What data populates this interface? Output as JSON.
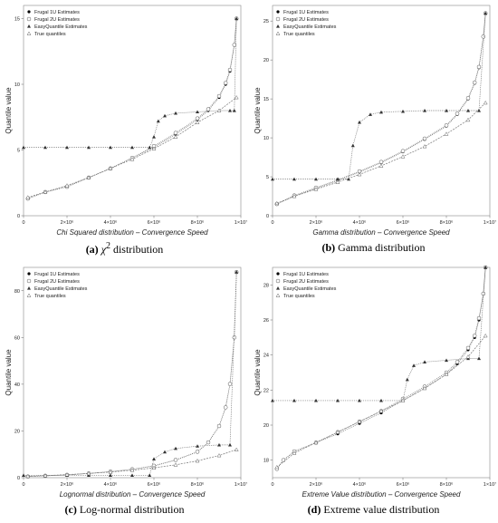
{
  "panels": [
    {
      "tag": "(a)",
      "caption_pre": "",
      "caption_math": "χ",
      "caption_sup": "2",
      "caption_post": " distribution"
    },
    {
      "tag": "(b)",
      "caption_pre": "Gamma distribution",
      "caption_math": "",
      "caption_sup": "",
      "caption_post": ""
    },
    {
      "tag": "(c)",
      "caption_pre": "Log-normal distribution",
      "caption_math": "",
      "caption_sup": "",
      "caption_post": ""
    },
    {
      "tag": "(d)",
      "caption_pre": "Extreme value distribution",
      "caption_math": "",
      "caption_sup": "",
      "caption_post": ""
    }
  ],
  "chart_data": [
    {
      "type": "scatter",
      "title": "",
      "xlabel": "Chi Squared distribution –  Convergence Speed",
      "ylabel": "Quantile value",
      "xlim": [
        0,
        10000000
      ],
      "ylim": [
        0,
        16
      ],
      "xticks": [
        0,
        2000000,
        4000000,
        6000000,
        8000000,
        10000000
      ],
      "xtick_labels": [
        "0",
        "2×10⁶",
        "4×10⁶",
        "6×10⁶",
        "8×10⁶",
        "1×10⁷"
      ],
      "yticks": [
        0,
        5,
        10,
        15
      ],
      "legend_position": "top-left",
      "series": [
        {
          "name": "Frugal 1U Estimates",
          "marker": "filled-circle",
          "x": [
            200000,
            1000000,
            2000000,
            3000000,
            4000000,
            5000000,
            6000000,
            7000000,
            8000000,
            8500000,
            9000000,
            9300000,
            9500000,
            9700000,
            9800000
          ],
          "y": [
            1.3,
            1.8,
            2.2,
            2.9,
            3.6,
            4.4,
            5.2,
            6.2,
            7.3,
            8.0,
            9.0,
            10.0,
            11.0,
            13.0,
            15.0
          ]
        },
        {
          "name": "Frugal 2U Estimates",
          "marker": "open-circle",
          "x": [
            200000,
            1000000,
            2000000,
            3000000,
            4000000,
            5000000,
            6000000,
            7000000,
            8000000,
            8500000,
            9000000,
            9300000,
            9500000,
            9700000,
            9800000
          ],
          "y": [
            1.3,
            1.8,
            2.2,
            2.9,
            3.6,
            4.4,
            5.3,
            6.3,
            7.4,
            8.1,
            9.1,
            10.1,
            11.1,
            13.0,
            15.0
          ]
        },
        {
          "name": "EasyQuantile Estimates",
          "marker": "filled-triangle",
          "x": [
            0,
            1000000,
            2000000,
            3000000,
            4000000,
            5000000,
            5800000,
            6000000,
            6200000,
            6500000,
            7000000,
            8000000,
            9000000,
            9500000,
            9700000,
            9800000
          ],
          "y": [
            5.2,
            5.2,
            5.2,
            5.2,
            5.2,
            5.2,
            5.2,
            6.0,
            7.2,
            7.6,
            7.8,
            7.9,
            8.0,
            8.0,
            8.0,
            15.0
          ]
        },
        {
          "name": "True quantiles",
          "marker": "open-triangle",
          "x": [
            200000,
            1000000,
            2000000,
            3000000,
            4000000,
            5000000,
            6000000,
            7000000,
            8000000,
            9000000,
            9800000
          ],
          "y": [
            1.4,
            1.8,
            2.3,
            2.9,
            3.6,
            4.3,
            5.1,
            6.0,
            7.1,
            8.0,
            9.0
          ]
        }
      ]
    },
    {
      "type": "scatter",
      "title": "",
      "xlabel": "Gamma distribution –  Convergence Speed",
      "ylabel": "Quantile value",
      "xlim": [
        0,
        10000000
      ],
      "ylim": [
        0,
        27
      ],
      "xticks": [
        0,
        2000000,
        4000000,
        6000000,
        8000000,
        10000000
      ],
      "xtick_labels": [
        "0",
        "2×10⁶",
        "4×10⁶",
        "6×10⁶",
        "8×10⁶",
        "1×10⁷"
      ],
      "yticks": [
        0,
        5,
        10,
        15,
        20,
        25
      ],
      "legend_position": "top-left",
      "series": [
        {
          "name": "Frugal 1U Estimates",
          "marker": "filled-circle",
          "x": [
            200000,
            1000000,
            2000000,
            3000000,
            4000000,
            5000000,
            6000000,
            7000000,
            8000000,
            8500000,
            9000000,
            9300000,
            9500000,
            9700000,
            9800000
          ],
          "y": [
            1.5,
            2.5,
            3.5,
            4.5,
            5.6,
            6.8,
            8.2,
            9.8,
            11.5,
            13.0,
            15.0,
            17.0,
            19.0,
            23.0,
            26.0
          ]
        },
        {
          "name": "Frugal 2U Estimates",
          "marker": "open-circle",
          "x": [
            200000,
            1000000,
            2000000,
            3000000,
            4000000,
            5000000,
            6000000,
            7000000,
            8000000,
            8500000,
            9000000,
            9300000,
            9500000,
            9700000,
            9800000
          ],
          "y": [
            1.5,
            2.6,
            3.6,
            4.6,
            5.7,
            6.9,
            8.3,
            9.9,
            11.6,
            13.1,
            15.1,
            17.1,
            19.1,
            23.0,
            26.0
          ]
        },
        {
          "name": "EasyQuantile Estimates",
          "marker": "filled-triangle",
          "x": [
            0,
            1000000,
            2000000,
            3000000,
            3500000,
            3700000,
            4000000,
            4500000,
            5000000,
            6000000,
            7000000,
            8000000,
            9000000,
            9500000,
            9800000
          ],
          "y": [
            4.7,
            4.7,
            4.7,
            4.7,
            4.7,
            9.0,
            12.0,
            13.0,
            13.3,
            13.4,
            13.5,
            13.5,
            13.5,
            13.5,
            26.0
          ]
        },
        {
          "name": "True quantiles",
          "marker": "open-triangle",
          "x": [
            200000,
            1000000,
            2000000,
            3000000,
            4000000,
            5000000,
            6000000,
            7000000,
            8000000,
            9000000,
            9800000
          ],
          "y": [
            1.6,
            2.5,
            3.4,
            4.3,
            5.3,
            6.4,
            7.6,
            8.9,
            10.5,
            12.3,
            14.5
          ]
        }
      ]
    },
    {
      "type": "scatter",
      "title": "",
      "xlabel": "Lognormal distribution –  Convergence Speed",
      "ylabel": "Quantile value",
      "xlim": [
        0,
        10000000
      ],
      "ylim": [
        0,
        90
      ],
      "xticks": [
        0,
        2000000,
        4000000,
        6000000,
        8000000,
        10000000
      ],
      "xtick_labels": [
        "0",
        "2×10⁶",
        "4×10⁶",
        "6×10⁶",
        "8×10⁶",
        "1×10⁷"
      ],
      "yticks": [
        0,
        20,
        40,
        60,
        80
      ],
      "legend_position": "top-left",
      "series": [
        {
          "name": "Frugal 1U Estimates",
          "marker": "filled-circle",
          "x": [
            200000,
            1000000,
            2000000,
            3000000,
            4000000,
            5000000,
            6000000,
            7000000,
            8000000,
            8500000,
            9000000,
            9300000,
            9500000,
            9700000,
            9800000
          ],
          "y": [
            0.5,
            0.8,
            1.2,
            1.8,
            2.6,
            3.6,
            5.0,
            7.5,
            11.0,
            15.0,
            22.0,
            30.0,
            40.0,
            60.0,
            88.0
          ]
        },
        {
          "name": "Frugal 2U Estimates",
          "marker": "open-circle",
          "x": [
            200000,
            1000000,
            2000000,
            3000000,
            4000000,
            5000000,
            6000000,
            7000000,
            8000000,
            8500000,
            9000000,
            9300000,
            9500000,
            9700000,
            9800000
          ],
          "y": [
            0.5,
            0.8,
            1.2,
            1.8,
            2.6,
            3.6,
            5.1,
            7.6,
            11.1,
            15.1,
            22.1,
            30.1,
            40.1,
            60.0,
            88.0
          ]
        },
        {
          "name": "EasyQuantile Estimates",
          "marker": "filled-triangle",
          "x": [
            0,
            1000000,
            2000000,
            3000000,
            4000000,
            5000000,
            5800000,
            6000000,
            6500000,
            7000000,
            8000000,
            9000000,
            9500000,
            9800000
          ],
          "y": [
            1.0,
            1.0,
            1.0,
            1.0,
            1.0,
            1.0,
            1.0,
            8.0,
            11.0,
            12.5,
            13.5,
            14.0,
            14.0,
            88.0
          ]
        },
        {
          "name": "True quantiles",
          "marker": "open-triangle",
          "x": [
            200000,
            1000000,
            2000000,
            3000000,
            4000000,
            5000000,
            6000000,
            7000000,
            8000000,
            9000000,
            9800000
          ],
          "y": [
            0.6,
            0.9,
            1.3,
            1.8,
            2.4,
            3.2,
            4.2,
            5.5,
            7.2,
            9.5,
            12.0
          ]
        }
      ]
    },
    {
      "type": "scatter",
      "title": "",
      "xlabel": "Extreme Value distribution –  Convergence Speed",
      "ylabel": "Quantile value",
      "xlim": [
        0,
        10000000
      ],
      "ylim": [
        17,
        29
      ],
      "xticks": [
        0,
        2000000,
        4000000,
        6000000,
        8000000,
        10000000
      ],
      "xtick_labels": [
        "0",
        "2×10⁶",
        "4×10⁶",
        "6×10⁶",
        "8×10⁶",
        "1×10⁷"
      ],
      "yticks": [
        18,
        20,
        22,
        24,
        26,
        28
      ],
      "legend_position": "top-left",
      "series": [
        {
          "name": "Frugal 1U Estimates",
          "marker": "filled-circle",
          "x": [
            200000,
            500000,
            1000000,
            2000000,
            3000000,
            4000000,
            5000000,
            6000000,
            7000000,
            8000000,
            8500000,
            9000000,
            9300000,
            9500000,
            9700000,
            9800000
          ],
          "y": [
            17.5,
            18.0,
            18.5,
            19.0,
            19.5,
            20.1,
            20.7,
            21.4,
            22.1,
            22.9,
            23.5,
            24.3,
            25.0,
            26.0,
            27.5,
            29.0
          ]
        },
        {
          "name": "Frugal 2U Estimates",
          "marker": "open-circle",
          "x": [
            200000,
            500000,
            1000000,
            2000000,
            3000000,
            4000000,
            5000000,
            6000000,
            7000000,
            8000000,
            8500000,
            9000000,
            9300000,
            9500000,
            9700000,
            9800000
          ],
          "y": [
            17.5,
            18.0,
            18.5,
            19.0,
            19.6,
            20.2,
            20.8,
            21.5,
            22.2,
            23.0,
            23.6,
            24.4,
            25.1,
            26.1,
            27.5,
            29.0
          ]
        },
        {
          "name": "EasyQuantile Estimates",
          "marker": "filled-triangle",
          "x": [
            0,
            1000000,
            2000000,
            3000000,
            4000000,
            5000000,
            6000000,
            6200000,
            6500000,
            7000000,
            8000000,
            9000000,
            9500000,
            9800000
          ],
          "y": [
            21.4,
            21.4,
            21.4,
            21.4,
            21.4,
            21.4,
            21.4,
            22.6,
            23.4,
            23.6,
            23.7,
            23.8,
            23.8,
            29.0
          ]
        },
        {
          "name": "True quantiles",
          "marker": "open-triangle",
          "x": [
            200000,
            1000000,
            2000000,
            3000000,
            4000000,
            5000000,
            6000000,
            7000000,
            8000000,
            9000000,
            9800000
          ],
          "y": [
            17.6,
            18.4,
            19.0,
            19.6,
            20.2,
            20.8,
            21.4,
            22.1,
            22.9,
            23.9,
            25.1
          ]
        }
      ]
    }
  ]
}
